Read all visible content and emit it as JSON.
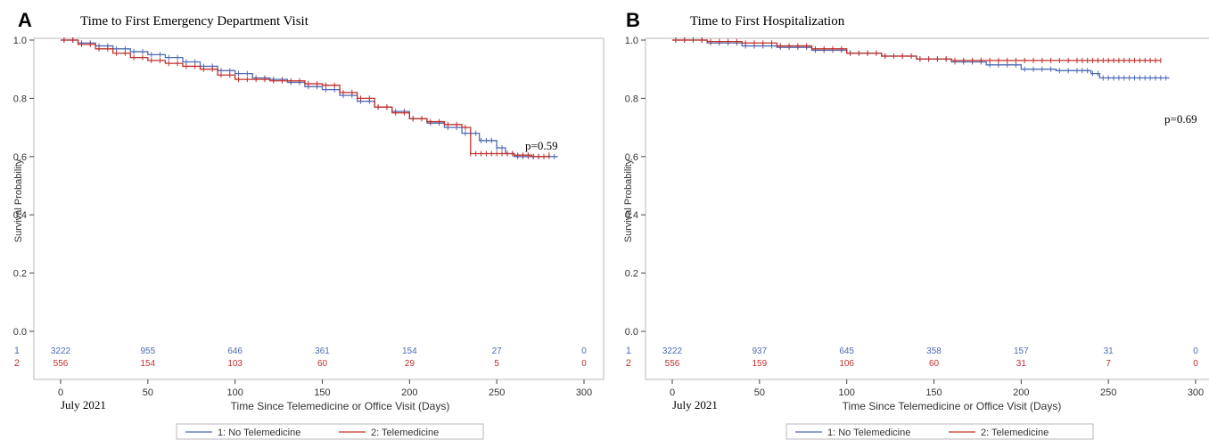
{
  "chart_data": [
    {
      "type": "line",
      "subtype": "kaplan-meier",
      "panel_letter": "A",
      "title": "Time to First Emergency Department Visit",
      "xlabel": "Time Since Telemedicine or Office Visit (Days)",
      "x_sublabel": "July 2021",
      "ylabel": "Survival Probability",
      "xlim": [
        0,
        300
      ],
      "ylim": [
        0,
        1.0
      ],
      "x_ticks": [
        0,
        50,
        100,
        150,
        200,
        250,
        300
      ],
      "y_ticks": [
        "0.0",
        "0.2",
        "0.4",
        "0.6",
        "0.8",
        "1.0"
      ],
      "grid": false,
      "p_value": "p=0.59",
      "legend_position": "bottom",
      "series": [
        {
          "key": "1",
          "name": "1: No Telemedicine",
          "color": "#4f6bb3",
          "x": [
            0,
            10,
            20,
            30,
            40,
            50,
            60,
            70,
            80,
            90,
            100,
            110,
            120,
            130,
            140,
            150,
            160,
            170,
            180,
            190,
            200,
            210,
            220,
            230,
            240,
            250,
            255,
            260,
            270,
            285
          ],
          "y": [
            1.0,
            0.99,
            0.98,
            0.97,
            0.96,
            0.95,
            0.94,
            0.925,
            0.91,
            0.895,
            0.885,
            0.87,
            0.865,
            0.855,
            0.84,
            0.83,
            0.81,
            0.79,
            0.77,
            0.755,
            0.73,
            0.715,
            0.7,
            0.68,
            0.655,
            0.63,
            0.61,
            0.6,
            0.6,
            0.6
          ]
        },
        {
          "key": "2",
          "name": "2: Telemedicine",
          "color": "#c0302b",
          "x": [
            0,
            10,
            20,
            30,
            40,
            50,
            60,
            70,
            80,
            90,
            100,
            110,
            120,
            130,
            140,
            150,
            160,
            170,
            180,
            190,
            200,
            210,
            220,
            230,
            235,
            240,
            250,
            260,
            270,
            280
          ],
          "y": [
            1.0,
            0.985,
            0.97,
            0.955,
            0.94,
            0.93,
            0.92,
            0.91,
            0.9,
            0.88,
            0.865,
            0.865,
            0.86,
            0.86,
            0.85,
            0.845,
            0.82,
            0.8,
            0.77,
            0.75,
            0.73,
            0.72,
            0.71,
            0.7,
            0.61,
            0.61,
            0.61,
            0.605,
            0.6,
            0.605
          ]
        }
      ],
      "risk_table": {
        "times": [
          0,
          50,
          100,
          150,
          200,
          250,
          300
        ],
        "rows": [
          {
            "label": "1",
            "color": "#4f6bb3",
            "values": [
              "3222",
              "955",
              "646",
              "361",
              "154",
              "27",
              "0"
            ]
          },
          {
            "label": "2",
            "color": "#c0302b",
            "values": [
              "556",
              "154",
              "103",
              "60",
              "29",
              "5",
              "0"
            ]
          }
        ]
      }
    },
    {
      "type": "line",
      "subtype": "kaplan-meier",
      "panel_letter": "B",
      "title": "Time to First Hospitalization",
      "xlabel": "Time Since Telemedicine or Office Visit (Days)",
      "x_sublabel": "July 2021",
      "ylabel": "Survival Probability",
      "xlim": [
        0,
        300
      ],
      "ylim": [
        0,
        1.0
      ],
      "x_ticks": [
        0,
        50,
        100,
        150,
        200,
        250,
        300
      ],
      "y_ticks": [
        "0.0",
        "0.2",
        "0.4",
        "0.6",
        "0.8",
        "1.0"
      ],
      "grid": false,
      "p_value": "p=0.69",
      "legend_position": "bottom",
      "series": [
        {
          "key": "1",
          "name": "1: No Telemedicine",
          "color": "#4f6bb3",
          "x": [
            0,
            20,
            40,
            60,
            80,
            100,
            120,
            140,
            160,
            180,
            200,
            220,
            240,
            245,
            260,
            285
          ],
          "y": [
            1.0,
            0.99,
            0.98,
            0.975,
            0.965,
            0.955,
            0.945,
            0.935,
            0.925,
            0.915,
            0.9,
            0.895,
            0.885,
            0.87,
            0.87,
            0.87
          ]
        },
        {
          "key": "2",
          "name": "2: Telemedicine",
          "color": "#c0302b",
          "x": [
            0,
            20,
            40,
            60,
            80,
            100,
            120,
            140,
            160,
            180,
            200,
            220,
            240,
            260,
            280
          ],
          "y": [
            1.0,
            0.995,
            0.99,
            0.98,
            0.97,
            0.955,
            0.945,
            0.935,
            0.93,
            0.93,
            0.93,
            0.93,
            0.93,
            0.93,
            0.93
          ]
        }
      ],
      "risk_table": {
        "times": [
          0,
          50,
          100,
          150,
          200,
          250,
          300
        ],
        "rows": [
          {
            "label": "1",
            "color": "#4f6bb3",
            "values": [
              "3222",
              "937",
              "645",
              "358",
              "157",
              "31",
              "0"
            ]
          },
          {
            "label": "2",
            "color": "#c0302b",
            "values": [
              "556",
              "159",
              "106",
              "60",
              "31",
              "7",
              "0"
            ]
          }
        ]
      }
    }
  ]
}
